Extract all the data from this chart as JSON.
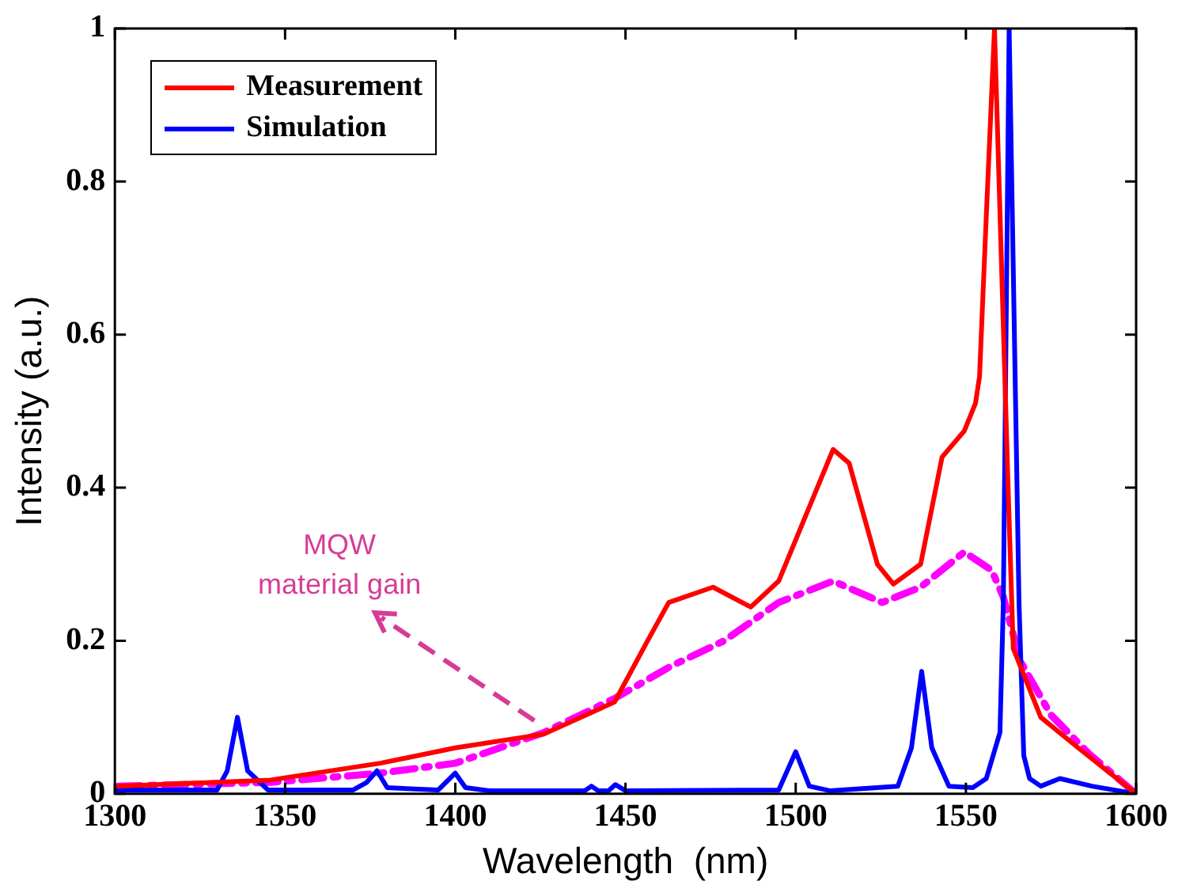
{
  "chart_data": {
    "type": "line",
    "xlabel": "Wavelength  (nm)",
    "ylabel": "Intensity (a.u.)",
    "xlim": [
      1300,
      1600
    ],
    "xticks": [
      1300,
      1350,
      1400,
      1450,
      1500,
      1550,
      1600
    ],
    "ylim": [
      0,
      1
    ],
    "yticks": [
      0,
      0.2,
      0.4,
      0.6,
      0.8,
      1
    ],
    "grid": false,
    "legend": "top left",
    "marker": "none",
    "annotations": [
      "MQW\nmaterial gain"
    ],
    "series": [
      {
        "name": "Measurement",
        "color": "#ff0000",
        "line_style": "solid",
        "x": [
          1301,
          1345.7,
          1378,
          1400,
          1426,
          1446.8,
          1456.5,
          1462.7,
          1475.7,
          1486.8,
          1495,
          1511,
          1515.7,
          1524,
          1528.7,
          1536.7,
          1543,
          1549.5,
          1552.8,
          1554,
          1556,
          1558.4,
          1562.4,
          1563.9,
          1572,
          1583,
          1600
        ],
        "values": [
          0.01,
          0.018,
          0.04,
          0.06,
          0.078,
          0.12,
          0.2,
          0.25,
          0.27,
          0.244,
          0.278,
          0.45,
          0.432,
          0.3,
          0.274,
          0.3,
          0.44,
          0.474,
          0.51,
          0.545,
          0.756,
          1.0,
          0.4,
          0.19,
          0.1,
          0.06,
          0.0
        ]
      },
      {
        "name": "Simulation",
        "color": "#0000ff",
        "line_style": "solid",
        "x": [
          1300,
          1330,
          1333,
          1336,
          1339,
          1345,
          1370,
          1374,
          1377,
          1380,
          1395,
          1400,
          1403,
          1410,
          1438,
          1440,
          1442,
          1445,
          1447,
          1450,
          1495,
          1500,
          1504,
          1510,
          1530,
          1534,
          1537,
          1540,
          1545,
          1552,
          1556,
          1560,
          1561,
          1562.7,
          1565.6,
          1567,
          1568.7,
          1572,
          1577.6,
          1587,
          1600
        ],
        "values": [
          0.005,
          0.005,
          0.03,
          0.1,
          0.03,
          0.005,
          0.005,
          0.015,
          0.03,
          0.008,
          0.005,
          0.027,
          0.008,
          0.004,
          0.004,
          0.01,
          0.004,
          0.004,
          0.012,
          0.004,
          0.005,
          0.055,
          0.01,
          0.004,
          0.01,
          0.06,
          0.16,
          0.06,
          0.01,
          0.008,
          0.02,
          0.08,
          0.25,
          1.0,
          0.25,
          0.05,
          0.02,
          0.01,
          0.02,
          0.01,
          0.0
        ]
      },
      {
        "color": "#ff00ff",
        "line_style": "dashed",
        "x": [
          1301,
          1346,
          1378,
          1400,
          1426,
          1447,
          1463,
          1479,
          1495,
          1511,
          1525.4,
          1536.7,
          1549.5,
          1557.6,
          1561,
          1566,
          1575,
          1586,
          1600
        ],
        "values": [
          0.01,
          0.015,
          0.027,
          0.04,
          0.08,
          0.125,
          0.166,
          0.2,
          0.25,
          0.278,
          0.25,
          0.27,
          0.316,
          0.292,
          0.257,
          0.173,
          0.103,
          0.053,
          0.0
        ]
      }
    ]
  }
}
